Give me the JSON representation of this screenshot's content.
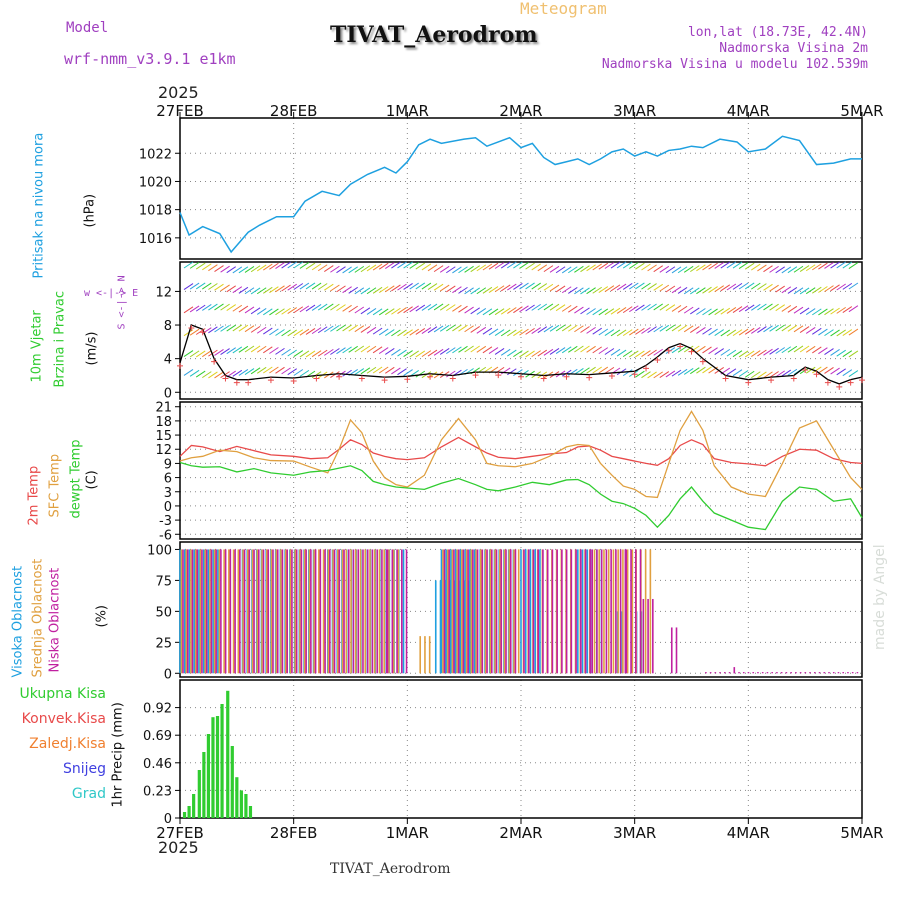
{
  "header": {
    "model_label": "Model",
    "model_name": "wrf-nmm_v3.9.1 e1km",
    "subtitle": "Meteogram",
    "title": "TIVAT_Aerodrom",
    "lonlat": "lon,lat (18.73E, 42.4N)",
    "elevation": "Nadmorska Visina 2m",
    "model_elevation": "Nadmorska Visina u modelu 102.539m",
    "bottom_title": "TIVAT_Aerodrom",
    "watermark": "made by Angel"
  },
  "time_axis": {
    "year": "2025",
    "labels": [
      "27FEB",
      "28FEB",
      "1MAR",
      "2MAR",
      "3MAR",
      "4MAR",
      "5MAR"
    ]
  },
  "panels": {
    "pressure": {
      "label": "Pritisak na nivou mora",
      "unit": "(hPa)"
    },
    "wind": {
      "label1": "10m Vjetar",
      "label2": "Brzina i Pravac",
      "unit": "(m/s)",
      "compass": "w <-|-> E",
      "compass_vertical": "S <-|-> N"
    },
    "temp": {
      "label1": "2m Temp",
      "label2": "SFC Temp",
      "label3": "dewpt Temp",
      "unit": "(C)"
    },
    "cloud": {
      "label1": "Visoka Oblacnost",
      "label2": "Srednja Oblacnost",
      "label3": "Niska Oblacnost",
      "unit": "(%)"
    },
    "precip": {
      "legend": [
        "Ukupna Kisa",
        "Konvek.Kisa",
        "Zaledj.Kisa",
        "Snijeg",
        "Grad"
      ],
      "unit": "1hr Precip (mm)"
    }
  },
  "colors": {
    "pressure": "#1ea0e0",
    "t2m": "#e84a4a",
    "tsfc": "#e0a040",
    "dewpt": "#30cc30",
    "precip": "#30cc30",
    "cloud_high": "#1ea0e0",
    "cloud_mid": "#e0a040",
    "cloud_low": "#c020a0"
  },
  "chart_data": [
    {
      "type": "line",
      "name": "pressure",
      "ylabel": "(hPa)",
      "yticks": [
        1016,
        1018,
        1020,
        1022
      ],
      "ylim": [
        1014.5,
        1024.5
      ],
      "x_days": [
        0,
        0.08,
        0.2,
        0.35,
        0.45,
        0.6,
        0.7,
        0.85,
        1.0,
        1.1,
        1.25,
        1.4,
        1.5,
        1.65,
        1.8,
        1.9,
        2.0,
        2.1,
        2.2,
        2.3,
        2.5,
        2.6,
        2.7,
        2.8,
        2.9,
        3.0,
        3.1,
        3.2,
        3.3,
        3.4,
        3.5,
        3.6,
        3.7,
        3.8,
        3.9,
        4.0,
        4.1,
        4.2,
        4.3,
        4.4,
        4.5,
        4.6,
        4.75,
        4.9,
        5.0,
        5.15,
        5.3,
        5.45,
        5.6,
        5.75,
        5.9,
        6.0
      ],
      "values": [
        1017.8,
        1016.2,
        1016.8,
        1016.3,
        1015.0,
        1016.4,
        1016.9,
        1017.5,
        1017.5,
        1018.6,
        1019.3,
        1019.0,
        1019.8,
        1020.5,
        1021.0,
        1020.6,
        1021.4,
        1022.6,
        1023.0,
        1022.7,
        1023.0,
        1023.1,
        1022.5,
        1022.8,
        1023.1,
        1022.4,
        1022.7,
        1021.7,
        1021.2,
        1021.4,
        1021.6,
        1021.2,
        1021.6,
        1022.1,
        1022.3,
        1021.8,
        1022.1,
        1021.8,
        1022.2,
        1022.3,
        1022.5,
        1022.4,
        1023.0,
        1022.8,
        1022.1,
        1022.3,
        1023.2,
        1022.9,
        1021.2,
        1021.3,
        1021.6,
        1021.6
      ]
    },
    {
      "type": "line",
      "name": "wind_speed",
      "ylabel": "(m/s)",
      "yticks": [
        0,
        4,
        8,
        12
      ],
      "ylim": [
        -0.8,
        15.5
      ],
      "x_days": [
        0,
        0.1,
        0.2,
        0.3,
        0.4,
        0.5,
        0.6,
        0.8,
        1.0,
        1.2,
        1.4,
        1.6,
        1.8,
        2.0,
        2.2,
        2.4,
        2.6,
        2.8,
        3.0,
        3.2,
        3.4,
        3.6,
        3.8,
        4.0,
        4.1,
        4.2,
        4.3,
        4.4,
        4.5,
        4.6,
        4.8,
        5.0,
        5.2,
        5.4,
        5.5,
        5.6,
        5.7,
        5.8,
        5.9,
        6.0
      ],
      "values": [
        3.5,
        8.0,
        7.5,
        4.0,
        2.0,
        1.5,
        1.5,
        1.8,
        1.7,
        2.0,
        2.2,
        2.0,
        1.8,
        1.9,
        2.2,
        2.0,
        2.4,
        2.4,
        2.2,
        2.0,
        2.2,
        2.1,
        2.3,
        2.5,
        3.2,
        4.2,
        5.3,
        5.8,
        5.2,
        4.0,
        2.0,
        1.5,
        1.8,
        2.0,
        3.0,
        2.5,
        1.5,
        1.0,
        1.5,
        1.8
      ]
    },
    {
      "type": "line",
      "name": "temperature",
      "ylabel": "(C)",
      "yticks": [
        -6,
        -3,
        0,
        3,
        6,
        9,
        12,
        15,
        18,
        21
      ],
      "ylim": [
        -7,
        22
      ],
      "x_days": [
        0,
        0.1,
        0.2,
        0.35,
        0.5,
        0.65,
        0.8,
        1.0,
        1.15,
        1.3,
        1.4,
        1.5,
        1.6,
        1.7,
        1.8,
        1.9,
        2.0,
        2.15,
        2.3,
        2.45,
        2.6,
        2.7,
        2.8,
        2.95,
        3.1,
        3.25,
        3.4,
        3.5,
        3.6,
        3.7,
        3.8,
        3.9,
        4.0,
        4.1,
        4.2,
        4.3,
        4.4,
        4.5,
        4.6,
        4.7,
        4.85,
        5.0,
        5.15,
        5.3,
        5.45,
        5.6,
        5.75,
        5.9,
        6.0
      ],
      "series": [
        {
          "name": "2m Temp",
          "values": [
            10.5,
            12.8,
            12.5,
            11.5,
            12.6,
            11.7,
            10.8,
            10.5,
            10.0,
            10.2,
            12.0,
            14.0,
            13.0,
            11.2,
            10.5,
            10.0,
            9.8,
            10.2,
            12.5,
            14.5,
            12.5,
            11.2,
            10.3,
            10.0,
            10.5,
            11.0,
            11.3,
            12.5,
            12.7,
            11.8,
            10.5,
            10.0,
            9.5,
            9.0,
            8.6,
            10.0,
            12.8,
            14.0,
            13.0,
            10.0,
            9.2,
            8.9,
            8.5,
            10.5,
            12.0,
            11.8,
            10.0,
            9.2,
            9.0
          ]
        },
        {
          "name": "SFC Temp",
          "values": [
            9.5,
            10.2,
            10.5,
            11.8,
            11.5,
            10.2,
            9.6,
            9.5,
            8.2,
            7.0,
            12.0,
            18.2,
            15.5,
            9.5,
            6.0,
            4.5,
            4.0,
            6.5,
            14.0,
            18.5,
            14.0,
            9.0,
            8.5,
            8.3,
            9.0,
            10.5,
            12.5,
            13.0,
            12.8,
            9.0,
            6.5,
            4.2,
            3.5,
            2.0,
            1.8,
            9.0,
            16.0,
            20.0,
            16.0,
            8.5,
            4.0,
            2.5,
            2.0,
            9.0,
            16.5,
            18.0,
            12.0,
            6.0,
            3.5
          ]
        },
        {
          "name": "dewpt Temp",
          "values": [
            9.2,
            8.5,
            8.2,
            8.3,
            7.2,
            7.9,
            7.0,
            6.5,
            7.2,
            7.5,
            8.0,
            8.5,
            7.5,
            5.2,
            4.5,
            4.0,
            3.8,
            3.5,
            4.8,
            5.8,
            4.5,
            3.5,
            3.2,
            4.0,
            5.0,
            4.5,
            5.5,
            5.6,
            4.5,
            2.5,
            1.0,
            0.5,
            -0.5,
            -2.0,
            -4.5,
            -2.0,
            1.5,
            4.0,
            1.0,
            -1.5,
            -3.0,
            -4.5,
            -5.0,
            1.0,
            4.0,
            3.5,
            1.0,
            1.5,
            -2.5
          ]
        }
      ]
    },
    {
      "type": "bar",
      "name": "cloud_cover",
      "ylabel": "(%)",
      "yticks": [
        0,
        25,
        50,
        75,
        100
      ],
      "ylim": [
        -3,
        106
      ],
      "note_hours": "hourly bars, x in days from 27FEB 00h",
      "series": [
        {
          "name": "Visoka Oblacnost",
          "segments": [
            [
              0.0,
              0.35,
              100
            ],
            [
              0.55,
              1.2,
              100
            ],
            [
              1.3,
              2.0,
              100
            ],
            [
              2.25,
              2.55,
              75
            ],
            [
              2.3,
              2.6,
              100
            ],
            [
              2.6,
              2.95,
              100
            ],
            [
              3.0,
              3.2,
              100
            ],
            [
              3.5,
              3.75,
              100
            ],
            [
              3.85,
              4.1,
              50
            ]
          ]
        },
        {
          "name": "Srednja Oblacnost",
          "segments": [
            [
              0.0,
              1.45,
              100
            ],
            [
              1.45,
              1.95,
              100
            ],
            [
              2.1,
              2.2,
              30
            ],
            [
              2.3,
              4.0,
              100
            ],
            [
              4.0,
              4.15,
              100
            ]
          ]
        },
        {
          "name": "Niska Oblacnost",
          "segments": [
            [
              0.0,
              1.8,
              100
            ],
            [
              1.8,
              2.0,
              100
            ],
            [
              2.3,
              2.95,
              100
            ],
            [
              3.0,
              3.6,
              100
            ],
            [
              3.6,
              3.9,
              100
            ],
            [
              3.9,
              4.05,
              100
            ],
            [
              4.05,
              4.15,
              60
            ],
            [
              4.3,
              4.35,
              37
            ],
            [
              4.6,
              6.0,
              1
            ],
            [
              4.85,
              4.87,
              5
            ]
          ]
        }
      ]
    },
    {
      "type": "bar",
      "name": "precipitation",
      "ylabel": "1hr Precip (mm)",
      "yticks": [
        0,
        0.23,
        0.46,
        0.69,
        0.92
      ],
      "ylim": [
        0,
        1.15
      ],
      "series": [
        {
          "name": "Ukupna Kisa",
          "x_days": [
            0.04,
            0.08,
            0.12,
            0.17,
            0.21,
            0.25,
            0.29,
            0.33,
            0.37,
            0.42,
            0.46,
            0.5,
            0.54,
            0.58,
            0.62
          ],
          "values": [
            0.05,
            0.1,
            0.2,
            0.4,
            0.55,
            0.7,
            0.84,
            0.85,
            0.95,
            1.06,
            0.6,
            0.34,
            0.23,
            0.2,
            0.1
          ]
        }
      ]
    }
  ]
}
